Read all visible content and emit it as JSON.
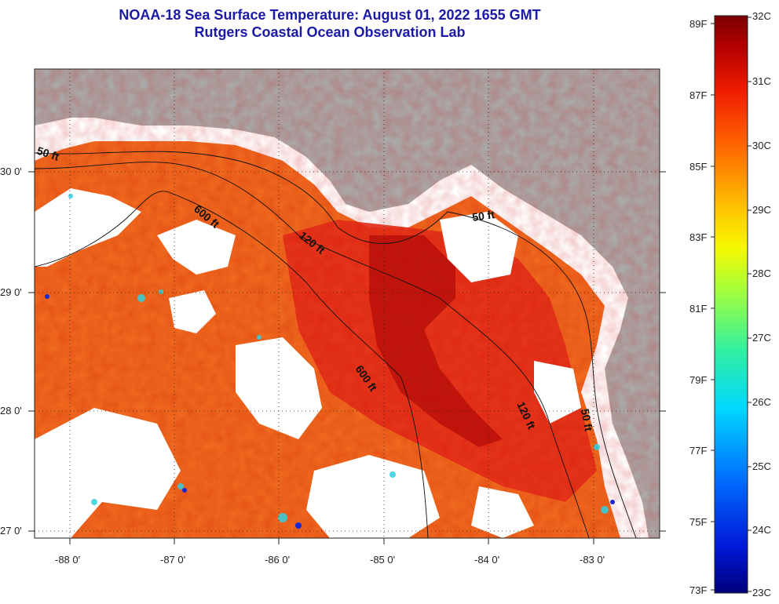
{
  "title": {
    "line1": "NOAA-18 Sea Surface Temperature:  August 01, 2022 1655 GMT",
    "line2": "Rutgers Coastal Ocean Observation Lab"
  },
  "map": {
    "x_ticks": [
      "-88 0'",
      "-87 0'",
      "-86 0'",
      "-85 0'",
      "-84 0'",
      "-83 0'"
    ],
    "y_ticks": [
      "30 0'",
      "29 0'",
      "28 0'",
      "27 0'"
    ],
    "contour_labels": [
      "50 ft",
      "600 ft",
      "120 ft",
      "50 ft",
      "600 ft",
      "120 ft",
      "50 ft"
    ],
    "colors": {
      "land": "#aaaaaa",
      "cloud": "#ffffff",
      "warm_dark": "#b8100c",
      "warm": "#e8301a",
      "orange": "#f26a1c",
      "cool": "#2fd0e0"
    }
  },
  "colorbar": {
    "fahrenheit": [
      "89F",
      "87F",
      "85F",
      "83F",
      "81F",
      "79F",
      "77F",
      "75F",
      "73F"
    ],
    "celsius": [
      "32C",
      "31C",
      "30C",
      "29C",
      "28C",
      "27C",
      "26C",
      "25C",
      "24C",
      "23C"
    ],
    "range_c": [
      23,
      32
    ]
  }
}
